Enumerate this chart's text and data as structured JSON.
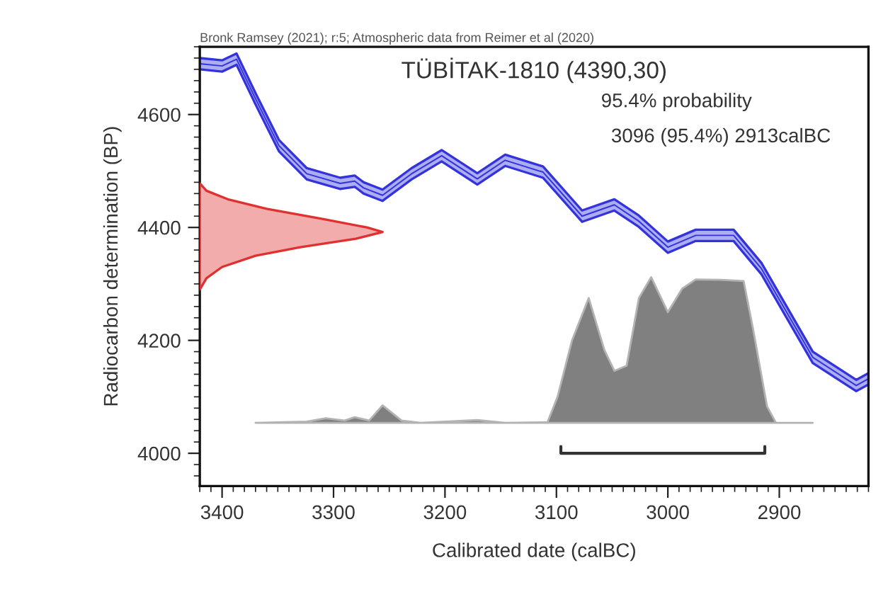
{
  "chart_data": [
    {
      "type": "line",
      "title": "TÜBİTAK-1810 (4390,30)",
      "xlabel": "Calibrated date (calBC)",
      "ylabel": "Radiocarbon determination (BP)",
      "annotations": [
        "Bronk Ramsey (2021); r:5; Atmospheric data from Reimer et al (2020)",
        "95.4% probability",
        "3096 (95.4%) 2913calBC"
      ],
      "xlim": [
        3420,
        2820
      ],
      "ylim": [
        3942,
        4720
      ],
      "xticks": [
        3400,
        3300,
        3200,
        3100,
        3000,
        2900
      ],
      "yticks": [
        4000,
        4200,
        4400,
        4600
      ],
      "series": [
        {
          "color": "#3333dd",
          "x": [
            3420,
            3400,
            3387,
            3370,
            3349,
            3324,
            3294,
            3281,
            3273,
            3256,
            3230,
            3203,
            3171,
            3146,
            3112,
            3077,
            3048,
            3026,
            3000,
            2975,
            2941,
            2916,
            2870,
            2831,
            2820
          ],
          "values": [
            4690,
            4686,
            4698,
            4628,
            4545,
            4495,
            4478,
            4482,
            4470,
            4457,
            4495,
            4527,
            4486,
            4519,
            4498,
            4420,
            4440,
            4411,
            4365,
            4386,
            4386,
            4327,
            4170,
            4120,
            4132
          ],
          "lower": [
            4680,
            4676,
            4688,
            4618,
            4535,
            4485,
            4468,
            4472,
            4460,
            4447,
            4485,
            4517,
            4476,
            4509,
            4488,
            4410,
            4430,
            4401,
            4355,
            4376,
            4376,
            4317,
            4160,
            4110,
            4122
          ],
          "upper": [
            4700,
            4696,
            4708,
            4638,
            4555,
            4505,
            4488,
            4492,
            4480,
            4467,
            4505,
            4537,
            4496,
            4529,
            4508,
            4430,
            4450,
            4421,
            4375,
            4396,
            4396,
            4337,
            4180,
            4130,
            4142
          ]
        },
        {
          "type": "area",
          "color": "#808080",
          "x": [
            3370,
            3324,
            3307,
            3290,
            3281,
            3268,
            3256,
            3239,
            3222,
            3171,
            3146,
            3108,
            3099,
            3086,
            3071,
            3057,
            3048,
            3037,
            3026,
            3015,
            3000,
            2987,
            2975,
            2949,
            2932,
            2924,
            2911,
            2903,
            2870
          ],
          "values": [
            4054,
            4056,
            4062,
            4058,
            4064,
            4058,
            4085,
            4058,
            4054,
            4059,
            4054,
            4055,
            4100,
            4200,
            4275,
            4183,
            4146,
            4155,
            4275,
            4312,
            4250,
            4292,
            4308,
            4307,
            4305,
            4225,
            4083,
            4054,
            4054
          ]
        },
        {
          "color": "#333333",
          "x": [
            3096,
            3096,
            2913,
            2913
          ],
          "values": [
            4012,
            4000,
            4000,
            4012
          ]
        }
      ]
    },
    {
      "type": "area",
      "orientation": "horizontal",
      "tick_labels": false,
      "xlim": [
        3420,
        2820
      ],
      "ylim": [
        3942,
        4720
      ],
      "series": [
        {
          "color": "#e03030",
          "x": [
            4478,
            4465,
            4450,
            4433,
            4415,
            4400,
            4392,
            4380,
            4365,
            4350,
            4330,
            4310,
            4290
          ],
          "values": [
            3420,
            3414,
            3395,
            3360,
            3310,
            3270,
            3256,
            3280,
            3330,
            3370,
            3400,
            3414,
            3420
          ]
        }
      ]
    }
  ]
}
